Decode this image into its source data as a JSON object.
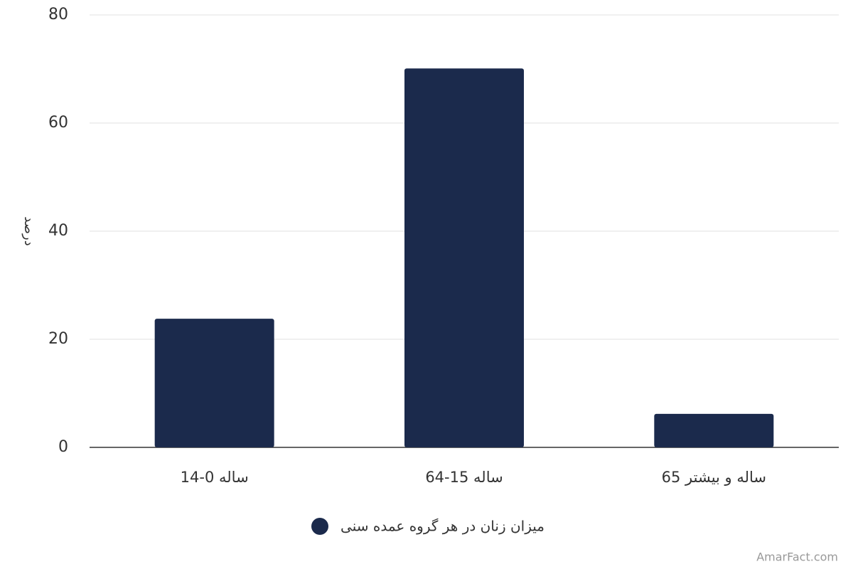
{
  "chart_data": {
    "type": "bar",
    "y_label": "درصد",
    "categories": [
      "ساله 0-14",
      "ساله 15-64",
      "ساله و بیشتر 65"
    ],
    "series": [
      {
        "name": "میزان زنان در هر گروه عمده سنی",
        "color": "#1b2a4c",
        "values": [
          23.8,
          70.1,
          6.2
        ]
      }
    ],
    "ylim": [
      0,
      80
    ],
    "yticks": [
      0,
      20,
      40,
      60,
      80
    ],
    "grid": true,
    "legend": "bottom",
    "credit": "AmarFact.com"
  }
}
